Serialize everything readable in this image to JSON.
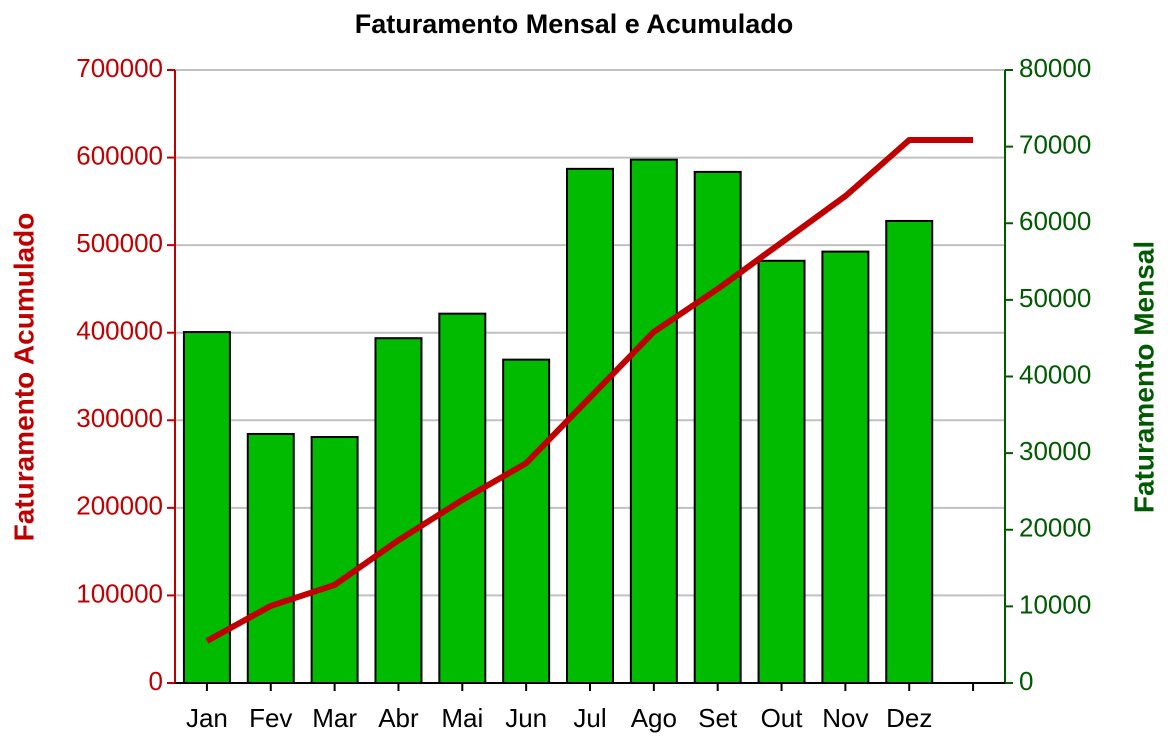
{
  "chart_data": {
    "type": "bar-line",
    "title": "Faturamento Mensal e Acumulado",
    "y_label": "Faturamento Acumulado",
    "y2_label": "Faturamento Mensal",
    "categories": [
      "Jan",
      "Fev",
      "Mar",
      "Abr",
      "Mai",
      "Jun",
      "Jul",
      "Ago",
      "Set",
      "Out",
      "Nov",
      "Dez",
      null
    ],
    "series": [
      {
        "name": "Faturamento Acumulado",
        "type": "line",
        "axis": "y",
        "color": "#c00000",
        "values": [
          48000,
          88000,
          112000,
          163000,
          209000,
          251000,
          326000,
          401000,
          450000,
          503000,
          556000,
          620000,
          620000
        ]
      },
      {
        "name": "Faturamento Mensal",
        "type": "bar",
        "axis": "y2",
        "color": "#00bb00",
        "values": [
          45800,
          32500,
          32100,
          45000,
          48200,
          42200,
          67100,
          68300,
          66700,
          55100,
          56300,
          60300,
          null
        ]
      }
    ],
    "ylim": [
      0,
      700000
    ],
    "yticks": [
      0,
      100000,
      200000,
      300000,
      400000,
      500000,
      600000,
      700000
    ],
    "y2lim": [
      0,
      80000
    ],
    "y2ticks": [
      0,
      10000,
      20000,
      30000,
      40000,
      50000,
      60000,
      70000,
      80000
    ],
    "y_color": "#c00000",
    "y2_color": "#005a00",
    "grid": true
  }
}
